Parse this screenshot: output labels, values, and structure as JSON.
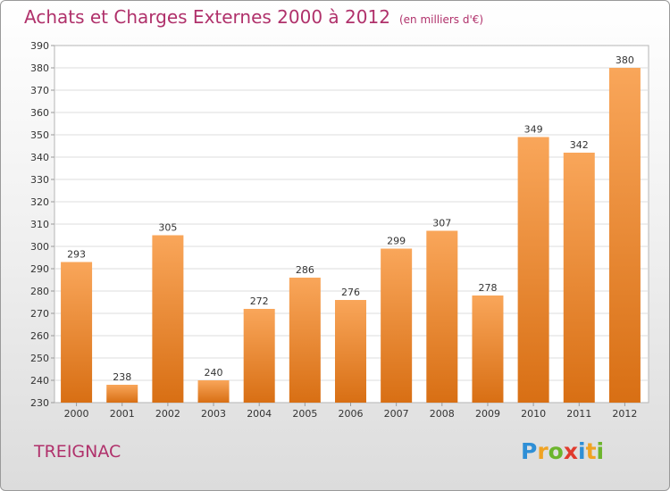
{
  "page": {
    "title": "Achats et Charges Externes 2000 à 2012",
    "subtitle": "(en milliers d'€)",
    "commune": "TREIGNAC",
    "logo": {
      "letters": [
        {
          "ch": "P",
          "color": "#2f8fd6"
        },
        {
          "ch": "r",
          "color": "#f0a323"
        },
        {
          "ch": "o",
          "color": "#6cb52d"
        },
        {
          "ch": "x",
          "color": "#e03b2e"
        },
        {
          "ch": "i",
          "color": "#2f8fd6"
        },
        {
          "ch": "t",
          "color": "#f0a323"
        },
        {
          "ch": "i",
          "color": "#6cb52d"
        }
      ]
    },
    "colors": {
      "title": "#b0316b",
      "bar_top": "#f9a65a",
      "bar_bottom": "#d86f14"
    }
  },
  "chart_data": {
    "type": "bar",
    "title": "Achats et Charges Externes 2000 à 2012",
    "subtitle": "(en milliers d'€)",
    "categories": [
      "2000",
      "2001",
      "2002",
      "2003",
      "2004",
      "2005",
      "2006",
      "2007",
      "2008",
      "2009",
      "2010",
      "2011",
      "2012"
    ],
    "values": [
      293,
      238,
      305,
      240,
      272,
      286,
      276,
      299,
      307,
      278,
      349,
      342,
      380
    ],
    "ylim": [
      230,
      390
    ],
    "yticks": [
      230,
      240,
      250,
      260,
      270,
      280,
      290,
      300,
      310,
      320,
      330,
      340,
      350,
      360,
      370,
      380,
      390
    ],
    "grid": true,
    "xlabel": "",
    "ylabel": ""
  }
}
